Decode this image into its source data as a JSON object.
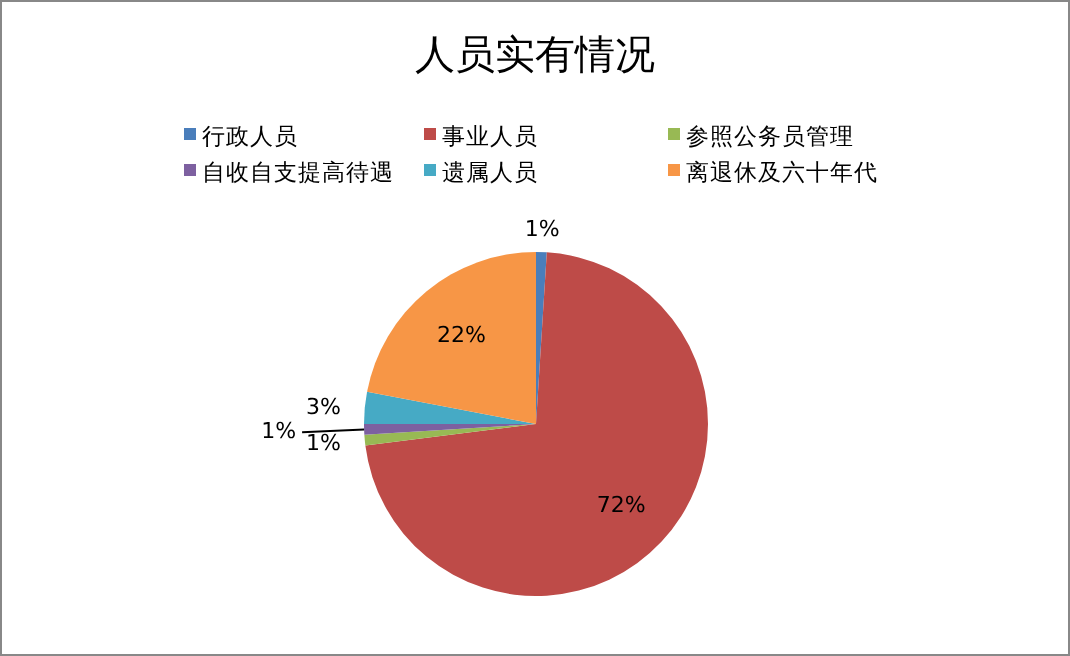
{
  "chart_data": {
    "type": "pie",
    "title": "人员实有情况",
    "categories": [
      "行政人员",
      "事业人员",
      "参照公务员管理",
      "自收自支提高待遇",
      "遗属人员",
      "离退休及六十年代"
    ],
    "values": [
      1,
      72,
      1,
      1,
      3,
      22
    ],
    "value_labels": [
      "1%",
      "72%",
      "1%",
      "1%",
      "3%",
      "22%"
    ],
    "colors": [
      "#4a7ebb",
      "#be4b48",
      "#98b954",
      "#7d60a0",
      "#46aac5",
      "#f79646"
    ],
    "legend": "top"
  }
}
